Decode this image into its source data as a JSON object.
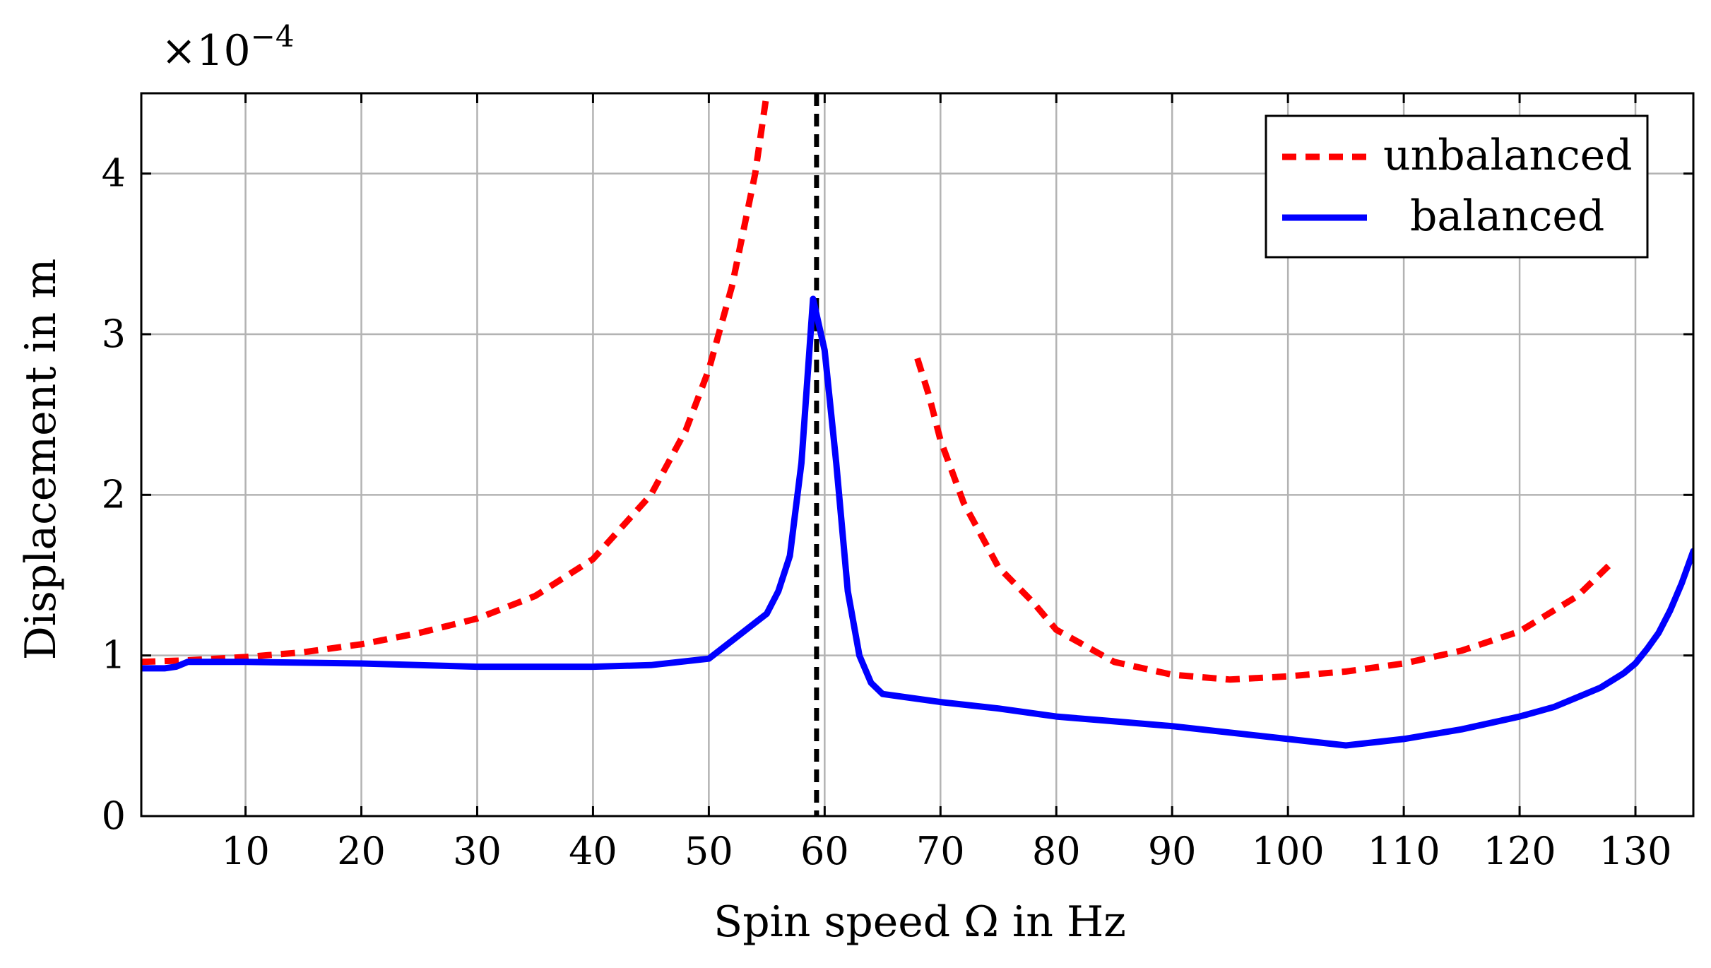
{
  "chart_data": {
    "type": "line",
    "title": "",
    "xlabel": "Spin speed Ω in Hz",
    "ylabel": "Displacement in m",
    "y_scale_label": "×10",
    "y_scale_exponent": "−4",
    "xlim": [
      1,
      135
    ],
    "ylim": [
      0,
      4.5
    ],
    "x_ticks": [
      10,
      20,
      30,
      40,
      50,
      60,
      70,
      80,
      90,
      100,
      110,
      120,
      130
    ],
    "y_ticks": [
      0,
      1,
      2,
      3,
      4
    ],
    "grid": true,
    "legend_position": "top-right",
    "vertical_reference_x": 59.3,
    "series": [
      {
        "name": "unbalanced",
        "color": "#ff0000",
        "style": "dashed",
        "segments": [
          [
            [
              1,
              0.96
            ],
            [
              5,
              0.97
            ],
            [
              10,
              0.99
            ],
            [
              15,
              1.02
            ],
            [
              20,
              1.07
            ],
            [
              25,
              1.14
            ],
            [
              30,
              1.23
            ],
            [
              35,
              1.37
            ],
            [
              40,
              1.6
            ],
            [
              45,
              2.0
            ],
            [
              48,
              2.4
            ],
            [
              50,
              2.78
            ],
            [
              52,
              3.3
            ],
            [
              54,
              4.0
            ],
            [
              55,
              4.5
            ]
          ],
          [
            [
              68,
              2.85
            ],
            [
              69,
              2.62
            ],
            [
              70,
              2.34
            ],
            [
              72,
              1.95
            ],
            [
              75,
              1.55
            ],
            [
              78,
              1.33
            ],
            [
              80,
              1.16
            ],
            [
              85,
              0.96
            ],
            [
              90,
              0.88
            ],
            [
              95,
              0.85
            ],
            [
              100,
              0.87
            ],
            [
              105,
              0.9
            ],
            [
              110,
              0.95
            ],
            [
              115,
              1.03
            ],
            [
              120,
              1.15
            ],
            [
              125,
              1.37
            ],
            [
              128,
              1.58
            ]
          ]
        ]
      },
      {
        "name": "balanced",
        "color": "#0000ff",
        "style": "solid",
        "segments": [
          [
            [
              1,
              0.92
            ],
            [
              3,
              0.92
            ],
            [
              4,
              0.93
            ],
            [
              5,
              0.96
            ],
            [
              10,
              0.96
            ],
            [
              20,
              0.95
            ],
            [
              30,
              0.93
            ],
            [
              40,
              0.93
            ],
            [
              45,
              0.94
            ],
            [
              50,
              0.98
            ],
            [
              55,
              1.26
            ],
            [
              56,
              1.4
            ],
            [
              57,
              1.62
            ],
            [
              58,
              2.2
            ],
            [
              59,
              3.22
            ],
            [
              60,
              2.9
            ],
            [
              61,
              2.2
            ],
            [
              62,
              1.4
            ],
            [
              63,
              1.0
            ],
            [
              64,
              0.83
            ],
            [
              65,
              0.76
            ],
            [
              70,
              0.71
            ],
            [
              75,
              0.67
            ],
            [
              80,
              0.62
            ],
            [
              85,
              0.59
            ],
            [
              90,
              0.56
            ],
            [
              95,
              0.52
            ],
            [
              100,
              0.48
            ],
            [
              105,
              0.44
            ],
            [
              110,
              0.48
            ],
            [
              115,
              0.54
            ],
            [
              120,
              0.62
            ],
            [
              123,
              0.68
            ],
            [
              125,
              0.74
            ],
            [
              127,
              0.8
            ],
            [
              129,
              0.89
            ],
            [
              130,
              0.95
            ],
            [
              131,
              1.04
            ],
            [
              132,
              1.14
            ],
            [
              133,
              1.28
            ],
            [
              134,
              1.45
            ],
            [
              135,
              1.65
            ]
          ]
        ]
      }
    ]
  }
}
